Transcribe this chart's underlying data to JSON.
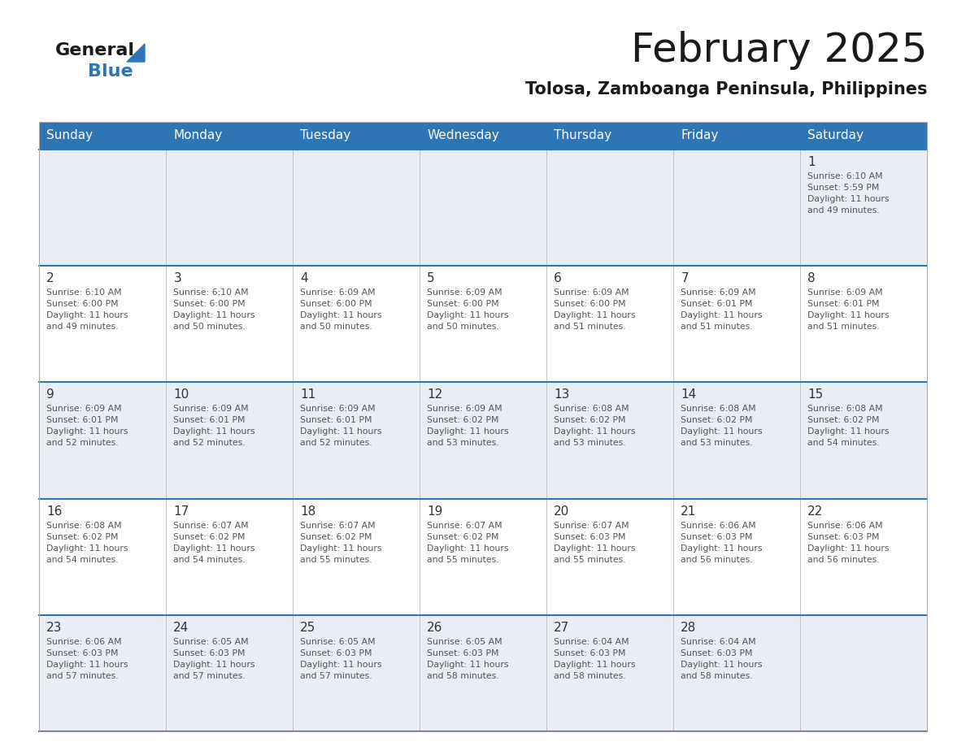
{
  "title": "February 2025",
  "subtitle": "Tolosa, Zamboanga Peninsula, Philippines",
  "header_bg_color": "#2e75b6",
  "header_text_color": "#ffffff",
  "row_odd_bg": "#e8eef4",
  "row_even_bg": "#ffffff",
  "text_color": "#333333",
  "divider_color": "#2e75b6",
  "border_color": "#aaaaaa",
  "days_of_week": [
    "Sunday",
    "Monday",
    "Tuesday",
    "Wednesday",
    "Thursday",
    "Friday",
    "Saturday"
  ],
  "weeks": [
    [
      {
        "day": null,
        "info": null
      },
      {
        "day": null,
        "info": null
      },
      {
        "day": null,
        "info": null
      },
      {
        "day": null,
        "info": null
      },
      {
        "day": null,
        "info": null
      },
      {
        "day": null,
        "info": null
      },
      {
        "day": 1,
        "info": "Sunrise: 6:10 AM\nSunset: 5:59 PM\nDaylight: 11 hours\nand 49 minutes."
      }
    ],
    [
      {
        "day": 2,
        "info": "Sunrise: 6:10 AM\nSunset: 6:00 PM\nDaylight: 11 hours\nand 49 minutes."
      },
      {
        "day": 3,
        "info": "Sunrise: 6:10 AM\nSunset: 6:00 PM\nDaylight: 11 hours\nand 50 minutes."
      },
      {
        "day": 4,
        "info": "Sunrise: 6:09 AM\nSunset: 6:00 PM\nDaylight: 11 hours\nand 50 minutes."
      },
      {
        "day": 5,
        "info": "Sunrise: 6:09 AM\nSunset: 6:00 PM\nDaylight: 11 hours\nand 50 minutes."
      },
      {
        "day": 6,
        "info": "Sunrise: 6:09 AM\nSunset: 6:00 PM\nDaylight: 11 hours\nand 51 minutes."
      },
      {
        "day": 7,
        "info": "Sunrise: 6:09 AM\nSunset: 6:01 PM\nDaylight: 11 hours\nand 51 minutes."
      },
      {
        "day": 8,
        "info": "Sunrise: 6:09 AM\nSunset: 6:01 PM\nDaylight: 11 hours\nand 51 minutes."
      }
    ],
    [
      {
        "day": 9,
        "info": "Sunrise: 6:09 AM\nSunset: 6:01 PM\nDaylight: 11 hours\nand 52 minutes."
      },
      {
        "day": 10,
        "info": "Sunrise: 6:09 AM\nSunset: 6:01 PM\nDaylight: 11 hours\nand 52 minutes."
      },
      {
        "day": 11,
        "info": "Sunrise: 6:09 AM\nSunset: 6:01 PM\nDaylight: 11 hours\nand 52 minutes."
      },
      {
        "day": 12,
        "info": "Sunrise: 6:09 AM\nSunset: 6:02 PM\nDaylight: 11 hours\nand 53 minutes."
      },
      {
        "day": 13,
        "info": "Sunrise: 6:08 AM\nSunset: 6:02 PM\nDaylight: 11 hours\nand 53 minutes."
      },
      {
        "day": 14,
        "info": "Sunrise: 6:08 AM\nSunset: 6:02 PM\nDaylight: 11 hours\nand 53 minutes."
      },
      {
        "day": 15,
        "info": "Sunrise: 6:08 AM\nSunset: 6:02 PM\nDaylight: 11 hours\nand 54 minutes."
      }
    ],
    [
      {
        "day": 16,
        "info": "Sunrise: 6:08 AM\nSunset: 6:02 PM\nDaylight: 11 hours\nand 54 minutes."
      },
      {
        "day": 17,
        "info": "Sunrise: 6:07 AM\nSunset: 6:02 PM\nDaylight: 11 hours\nand 54 minutes."
      },
      {
        "day": 18,
        "info": "Sunrise: 6:07 AM\nSunset: 6:02 PM\nDaylight: 11 hours\nand 55 minutes."
      },
      {
        "day": 19,
        "info": "Sunrise: 6:07 AM\nSunset: 6:02 PM\nDaylight: 11 hours\nand 55 minutes."
      },
      {
        "day": 20,
        "info": "Sunrise: 6:07 AM\nSunset: 6:03 PM\nDaylight: 11 hours\nand 55 minutes."
      },
      {
        "day": 21,
        "info": "Sunrise: 6:06 AM\nSunset: 6:03 PM\nDaylight: 11 hours\nand 56 minutes."
      },
      {
        "day": 22,
        "info": "Sunrise: 6:06 AM\nSunset: 6:03 PM\nDaylight: 11 hours\nand 56 minutes."
      }
    ],
    [
      {
        "day": 23,
        "info": "Sunrise: 6:06 AM\nSunset: 6:03 PM\nDaylight: 11 hours\nand 57 minutes."
      },
      {
        "day": 24,
        "info": "Sunrise: 6:05 AM\nSunset: 6:03 PM\nDaylight: 11 hours\nand 57 minutes."
      },
      {
        "day": 25,
        "info": "Sunrise: 6:05 AM\nSunset: 6:03 PM\nDaylight: 11 hours\nand 57 minutes."
      },
      {
        "day": 26,
        "info": "Sunrise: 6:05 AM\nSunset: 6:03 PM\nDaylight: 11 hours\nand 58 minutes."
      },
      {
        "day": 27,
        "info": "Sunrise: 6:04 AM\nSunset: 6:03 PM\nDaylight: 11 hours\nand 58 minutes."
      },
      {
        "day": 28,
        "info": "Sunrise: 6:04 AM\nSunset: 6:03 PM\nDaylight: 11 hours\nand 58 minutes."
      },
      {
        "day": null,
        "info": null
      }
    ]
  ],
  "logo_general_color": "#1a1a1a",
  "logo_blue_color": "#2e75b6",
  "logo_triangle_color": "#2e75b6",
  "title_fontsize": 36,
  "subtitle_fontsize": 15,
  "header_fontsize": 11,
  "day_num_fontsize": 11,
  "info_fontsize": 7.8
}
